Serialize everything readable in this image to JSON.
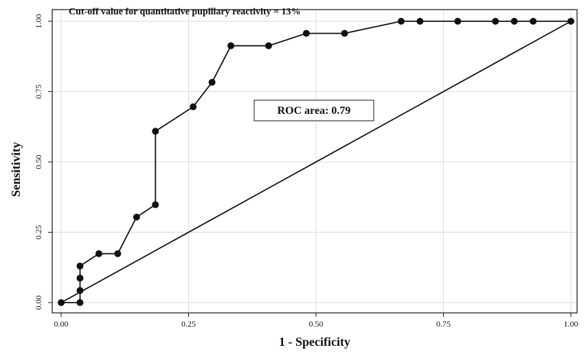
{
  "chart_data": {
    "type": "line",
    "xlabel": "1 - Specificity",
    "ylabel": "Sensitivity",
    "xlim": [
      0,
      1
    ],
    "ylim": [
      0,
      1
    ],
    "x_ticks": [
      "0.00",
      "0.25",
      "0.50",
      "0.75",
      "1.00"
    ],
    "y_ticks": [
      "0.00",
      "0.25",
      "0.50",
      "0.75",
      "1.00"
    ],
    "grid": true,
    "annotation": "Cut-off value for quantitative pupillary reactivity = 13%",
    "roc_area_label": "ROC area: 0.79",
    "series": [
      {
        "x": [
          0.0,
          0.037,
          0.037,
          0.037,
          0.037,
          0.074,
          0.111,
          0.148,
          0.185,
          0.185,
          0.259,
          0.296,
          0.333,
          0.407,
          0.481,
          0.556,
          0.667,
          0.704,
          0.778,
          0.852,
          0.889,
          0.926,
          1.0
        ],
        "y": [
          0.0,
          0.0,
          0.043,
          0.087,
          0.13,
          0.174,
          0.174,
          0.304,
          0.348,
          0.609,
          0.696,
          0.783,
          0.913,
          0.913,
          0.957,
          0.957,
          1.0,
          1.0,
          1.0,
          1.0,
          1.0,
          1.0,
          1.0
        ],
        "markers": true
      },
      {
        "x": [
          0.0,
          1.0
        ],
        "y": [
          0.0,
          1.0
        ],
        "markers": false
      }
    ],
    "colors": {
      "line": "#111111",
      "grid": "#e0e0e0",
      "axis": "#111111"
    }
  }
}
